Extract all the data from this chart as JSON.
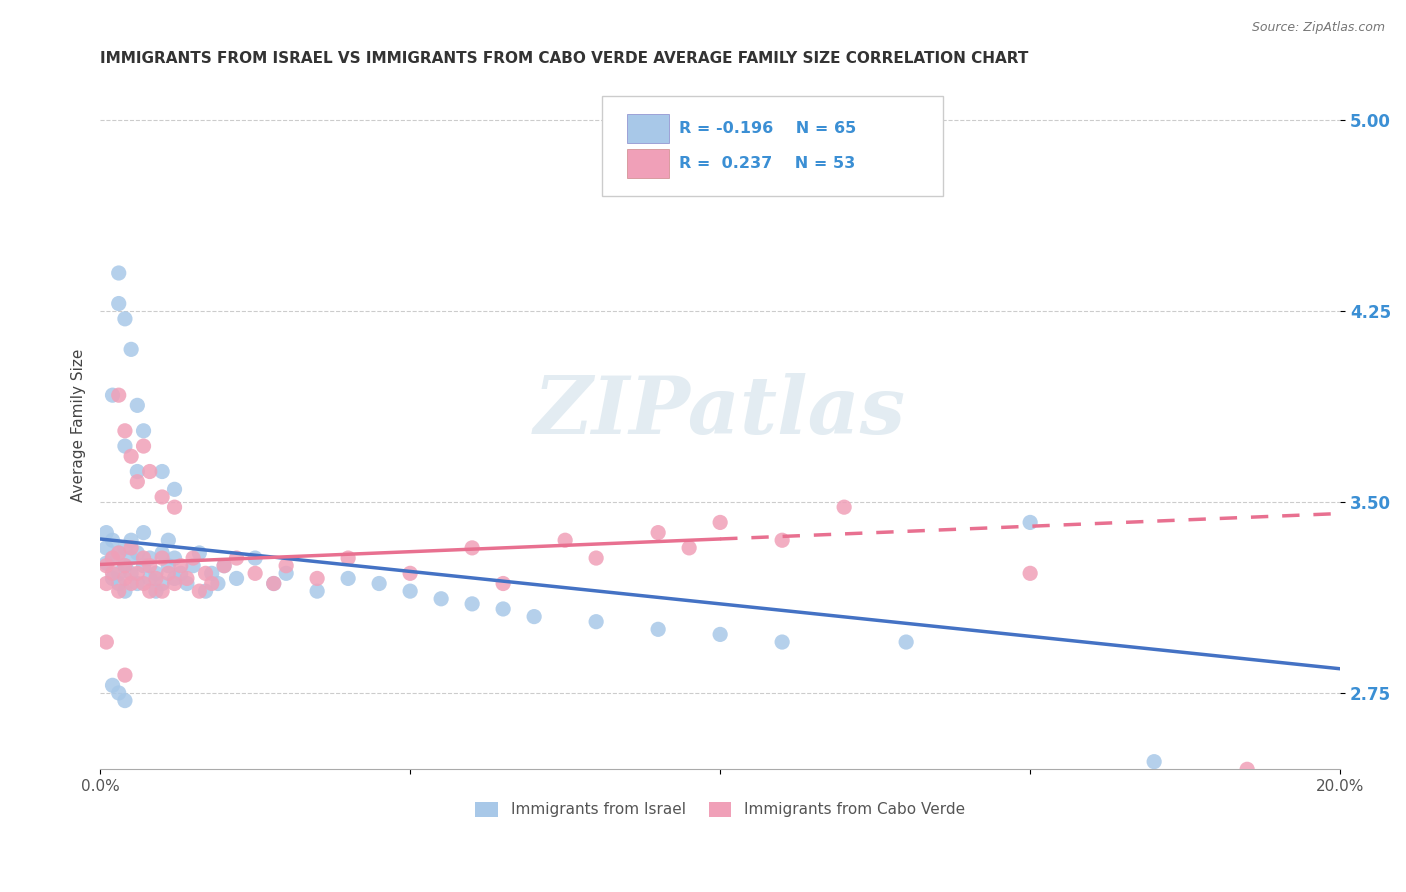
{
  "title": "IMMIGRANTS FROM ISRAEL VS IMMIGRANTS FROM CABO VERDE AVERAGE FAMILY SIZE CORRELATION CHART",
  "source": "Source: ZipAtlas.com",
  "ylabel": "Average Family Size",
  "yticks": [
    2.75,
    3.5,
    4.25,
    5.0
  ],
  "xlim": [
    0.0,
    0.2
  ],
  "ylim": [
    2.45,
    5.15
  ],
  "watermark": "ZIPatlas",
  "israel_color": "#a8c8e8",
  "cabo_verde_color": "#f0a0b8",
  "israel_line_color": "#4472c4",
  "cabo_verde_line_color": "#e87090",
  "israel_line_y0": 3.355,
  "israel_line_y1": 2.845,
  "cabo_verde_line_y0": 3.255,
  "cabo_verde_line_y1": 3.455,
  "israel_scatter": [
    [
      0.001,
      3.32
    ],
    [
      0.001,
      3.26
    ],
    [
      0.001,
      3.38
    ],
    [
      0.002,
      3.2
    ],
    [
      0.002,
      3.35
    ],
    [
      0.002,
      3.28
    ],
    [
      0.003,
      3.22
    ],
    [
      0.003,
      3.3
    ],
    [
      0.003,
      3.18
    ],
    [
      0.004,
      3.25
    ],
    [
      0.004,
      3.32
    ],
    [
      0.004,
      3.15
    ],
    [
      0.005,
      3.28
    ],
    [
      0.005,
      3.22
    ],
    [
      0.005,
      3.35
    ],
    [
      0.006,
      3.3
    ],
    [
      0.006,
      3.18
    ],
    [
      0.007,
      3.25
    ],
    [
      0.007,
      3.38
    ],
    [
      0.008,
      3.2
    ],
    [
      0.008,
      3.28
    ],
    [
      0.009,
      3.15
    ],
    [
      0.009,
      3.22
    ],
    [
      0.01,
      3.3
    ],
    [
      0.01,
      3.18
    ],
    [
      0.011,
      3.25
    ],
    [
      0.011,
      3.35
    ],
    [
      0.012,
      3.2
    ],
    [
      0.012,
      3.28
    ],
    [
      0.013,
      3.22
    ],
    [
      0.014,
      3.18
    ],
    [
      0.015,
      3.25
    ],
    [
      0.016,
      3.3
    ],
    [
      0.017,
      3.15
    ],
    [
      0.018,
      3.22
    ],
    [
      0.019,
      3.18
    ],
    [
      0.02,
      3.25
    ],
    [
      0.022,
      3.2
    ],
    [
      0.025,
      3.28
    ],
    [
      0.028,
      3.18
    ],
    [
      0.03,
      3.22
    ],
    [
      0.035,
      3.15
    ],
    [
      0.04,
      3.2
    ],
    [
      0.045,
      3.18
    ],
    [
      0.05,
      3.15
    ],
    [
      0.055,
      3.12
    ],
    [
      0.06,
      3.1
    ],
    [
      0.065,
      3.08
    ],
    [
      0.07,
      3.05
    ],
    [
      0.08,
      3.03
    ],
    [
      0.09,
      3.0
    ],
    [
      0.1,
      2.98
    ],
    [
      0.11,
      2.95
    ],
    [
      0.13,
      2.95
    ],
    [
      0.15,
      3.42
    ],
    [
      0.003,
      4.4
    ],
    [
      0.003,
      4.28
    ],
    [
      0.004,
      4.22
    ],
    [
      0.005,
      4.1
    ],
    [
      0.006,
      3.88
    ],
    [
      0.007,
      3.78
    ],
    [
      0.002,
      3.92
    ],
    [
      0.004,
      3.72
    ],
    [
      0.006,
      3.62
    ],
    [
      0.01,
      3.62
    ],
    [
      0.012,
      3.55
    ],
    [
      0.002,
      2.78
    ],
    [
      0.003,
      2.75
    ],
    [
      0.004,
      2.72
    ],
    [
      0.17,
      2.48
    ]
  ],
  "cabo_verde_scatter": [
    [
      0.001,
      3.25
    ],
    [
      0.001,
      3.18
    ],
    [
      0.002,
      3.22
    ],
    [
      0.002,
      3.28
    ],
    [
      0.003,
      3.15
    ],
    [
      0.003,
      3.3
    ],
    [
      0.004,
      3.2
    ],
    [
      0.004,
      3.25
    ],
    [
      0.005,
      3.18
    ],
    [
      0.005,
      3.32
    ],
    [
      0.006,
      3.22
    ],
    [
      0.007,
      3.28
    ],
    [
      0.007,
      3.18
    ],
    [
      0.008,
      3.15
    ],
    [
      0.008,
      3.25
    ],
    [
      0.009,
      3.2
    ],
    [
      0.01,
      3.28
    ],
    [
      0.01,
      3.15
    ],
    [
      0.011,
      3.22
    ],
    [
      0.012,
      3.18
    ],
    [
      0.013,
      3.25
    ],
    [
      0.014,
      3.2
    ],
    [
      0.015,
      3.28
    ],
    [
      0.016,
      3.15
    ],
    [
      0.017,
      3.22
    ],
    [
      0.018,
      3.18
    ],
    [
      0.02,
      3.25
    ],
    [
      0.022,
      3.28
    ],
    [
      0.025,
      3.22
    ],
    [
      0.028,
      3.18
    ],
    [
      0.03,
      3.25
    ],
    [
      0.035,
      3.2
    ],
    [
      0.04,
      3.28
    ],
    [
      0.05,
      3.22
    ],
    [
      0.06,
      3.32
    ],
    [
      0.065,
      3.18
    ],
    [
      0.075,
      3.35
    ],
    [
      0.08,
      3.28
    ],
    [
      0.09,
      3.38
    ],
    [
      0.095,
      3.32
    ],
    [
      0.1,
      3.42
    ],
    [
      0.11,
      3.35
    ],
    [
      0.12,
      3.48
    ],
    [
      0.004,
      3.78
    ],
    [
      0.005,
      3.68
    ],
    [
      0.006,
      3.58
    ],
    [
      0.008,
      3.62
    ],
    [
      0.01,
      3.52
    ],
    [
      0.012,
      3.48
    ],
    [
      0.003,
      3.92
    ],
    [
      0.007,
      3.72
    ],
    [
      0.001,
      2.95
    ],
    [
      0.004,
      2.82
    ],
    [
      0.15,
      3.22
    ],
    [
      0.185,
      2.45
    ]
  ]
}
